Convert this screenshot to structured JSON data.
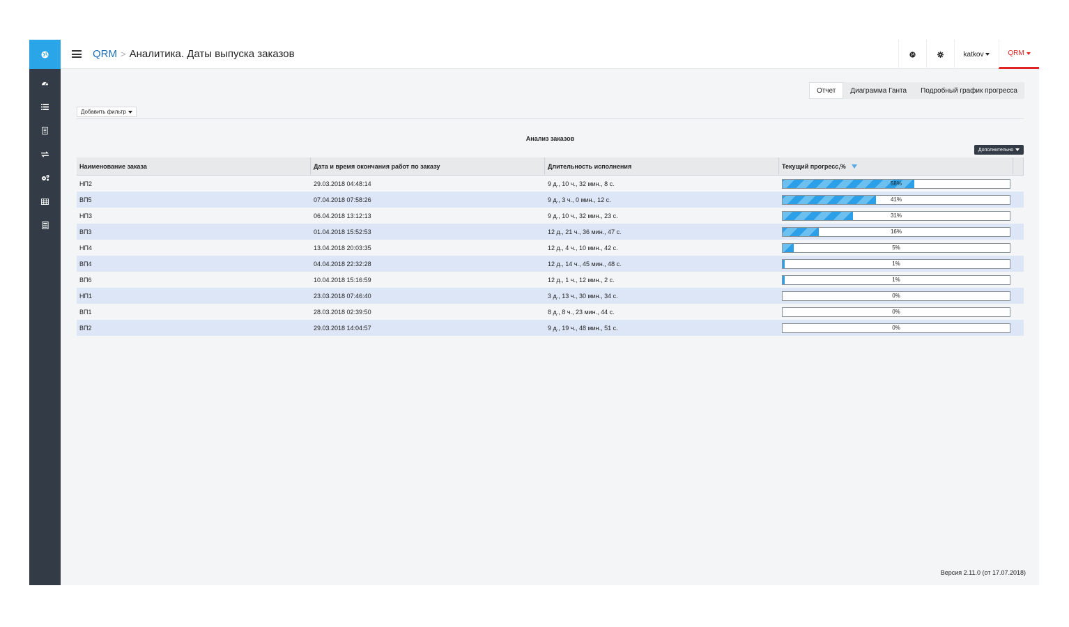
{
  "header": {
    "app_name": "QRM",
    "separator": ">",
    "page_title": "Аналитика. Даты выпуска заказов",
    "user_label": "katkov",
    "app_menu_label": "QRM"
  },
  "sidebar": {
    "top_icon": "globe-icon",
    "items": [
      {
        "icon": "dashboard-icon"
      },
      {
        "icon": "list-icon"
      },
      {
        "icon": "document-icon"
      },
      {
        "icon": "transfer-icon"
      },
      {
        "icon": "settings-group-icon"
      },
      {
        "icon": "table-icon"
      },
      {
        "icon": "calculator-icon"
      }
    ]
  },
  "tabs": [
    {
      "label": "Отчет",
      "active": true
    },
    {
      "label": "Диаграмма Ганта",
      "active": false
    },
    {
      "label": "Подробный график прогресса",
      "active": false
    }
  ],
  "filter": {
    "add_label": "Добавить фильтр"
  },
  "report": {
    "title": "Анализ заказов",
    "extra_label": "Дополнительно"
  },
  "table": {
    "columns": [
      "Наименование заказа",
      "Дата и время окончания работ по заказу",
      "Длительность исполнения",
      "Текущий прогресс,%"
    ],
    "rows": [
      {
        "name": "НП2",
        "end": "29.03.2018 04:48:14",
        "duration": "9 д., 10 ч., 32 мин., 8 с.",
        "progress": 58,
        "progress_label": "58%"
      },
      {
        "name": "ВП5",
        "end": "07.04.2018 07:58:26",
        "duration": "9 д., 3 ч., 0 мин., 12 с.",
        "progress": 41,
        "progress_label": "41%"
      },
      {
        "name": "НП3",
        "end": "06.04.2018 13:12:13",
        "duration": "9 д., 10 ч., 32 мин., 23 с.",
        "progress": 31,
        "progress_label": "31%"
      },
      {
        "name": "ВП3",
        "end": "01.04.2018 15:52:53",
        "duration": "12 д., 21 ч., 36 мин., 47 с.",
        "progress": 16,
        "progress_label": "16%"
      },
      {
        "name": "НП4",
        "end": "13.04.2018 20:03:35",
        "duration": "12 д., 4 ч., 10 мин., 42 с.",
        "progress": 5,
        "progress_label": "5%"
      },
      {
        "name": "ВП4",
        "end": "04.04.2018 22:32:28",
        "duration": "12 д., 14 ч., 45 мин., 48 с.",
        "progress": 1,
        "progress_label": "1%"
      },
      {
        "name": "ВП6",
        "end": "10.04.2018 15:16:59",
        "duration": "12 д., 1 ч., 12 мин., 2 с.",
        "progress": 1,
        "progress_label": "1%"
      },
      {
        "name": "НП1",
        "end": "23.03.2018 07:46:40",
        "duration": "3 д., 13 ч., 30 мин., 34 с.",
        "progress": 0,
        "progress_label": "0%"
      },
      {
        "name": "ВП1",
        "end": "28.03.2018 02:39:50",
        "duration": "8 д., 8 ч., 23 мин., 44 с.",
        "progress": 0,
        "progress_label": "0%"
      },
      {
        "name": "ВП2",
        "end": "29.03.2018 14:04:57",
        "duration": "9 д., 19 ч., 48 мин., 51 с.",
        "progress": 0,
        "progress_label": "0%"
      }
    ]
  },
  "footer": {
    "version": "Версия 2.11.0 (от 17.07.2018)"
  },
  "colors": {
    "accent": "#2aa6e8",
    "sidebar": "#333c46",
    "brand_red": "#e02424",
    "row_alt": "#dce6f6"
  }
}
